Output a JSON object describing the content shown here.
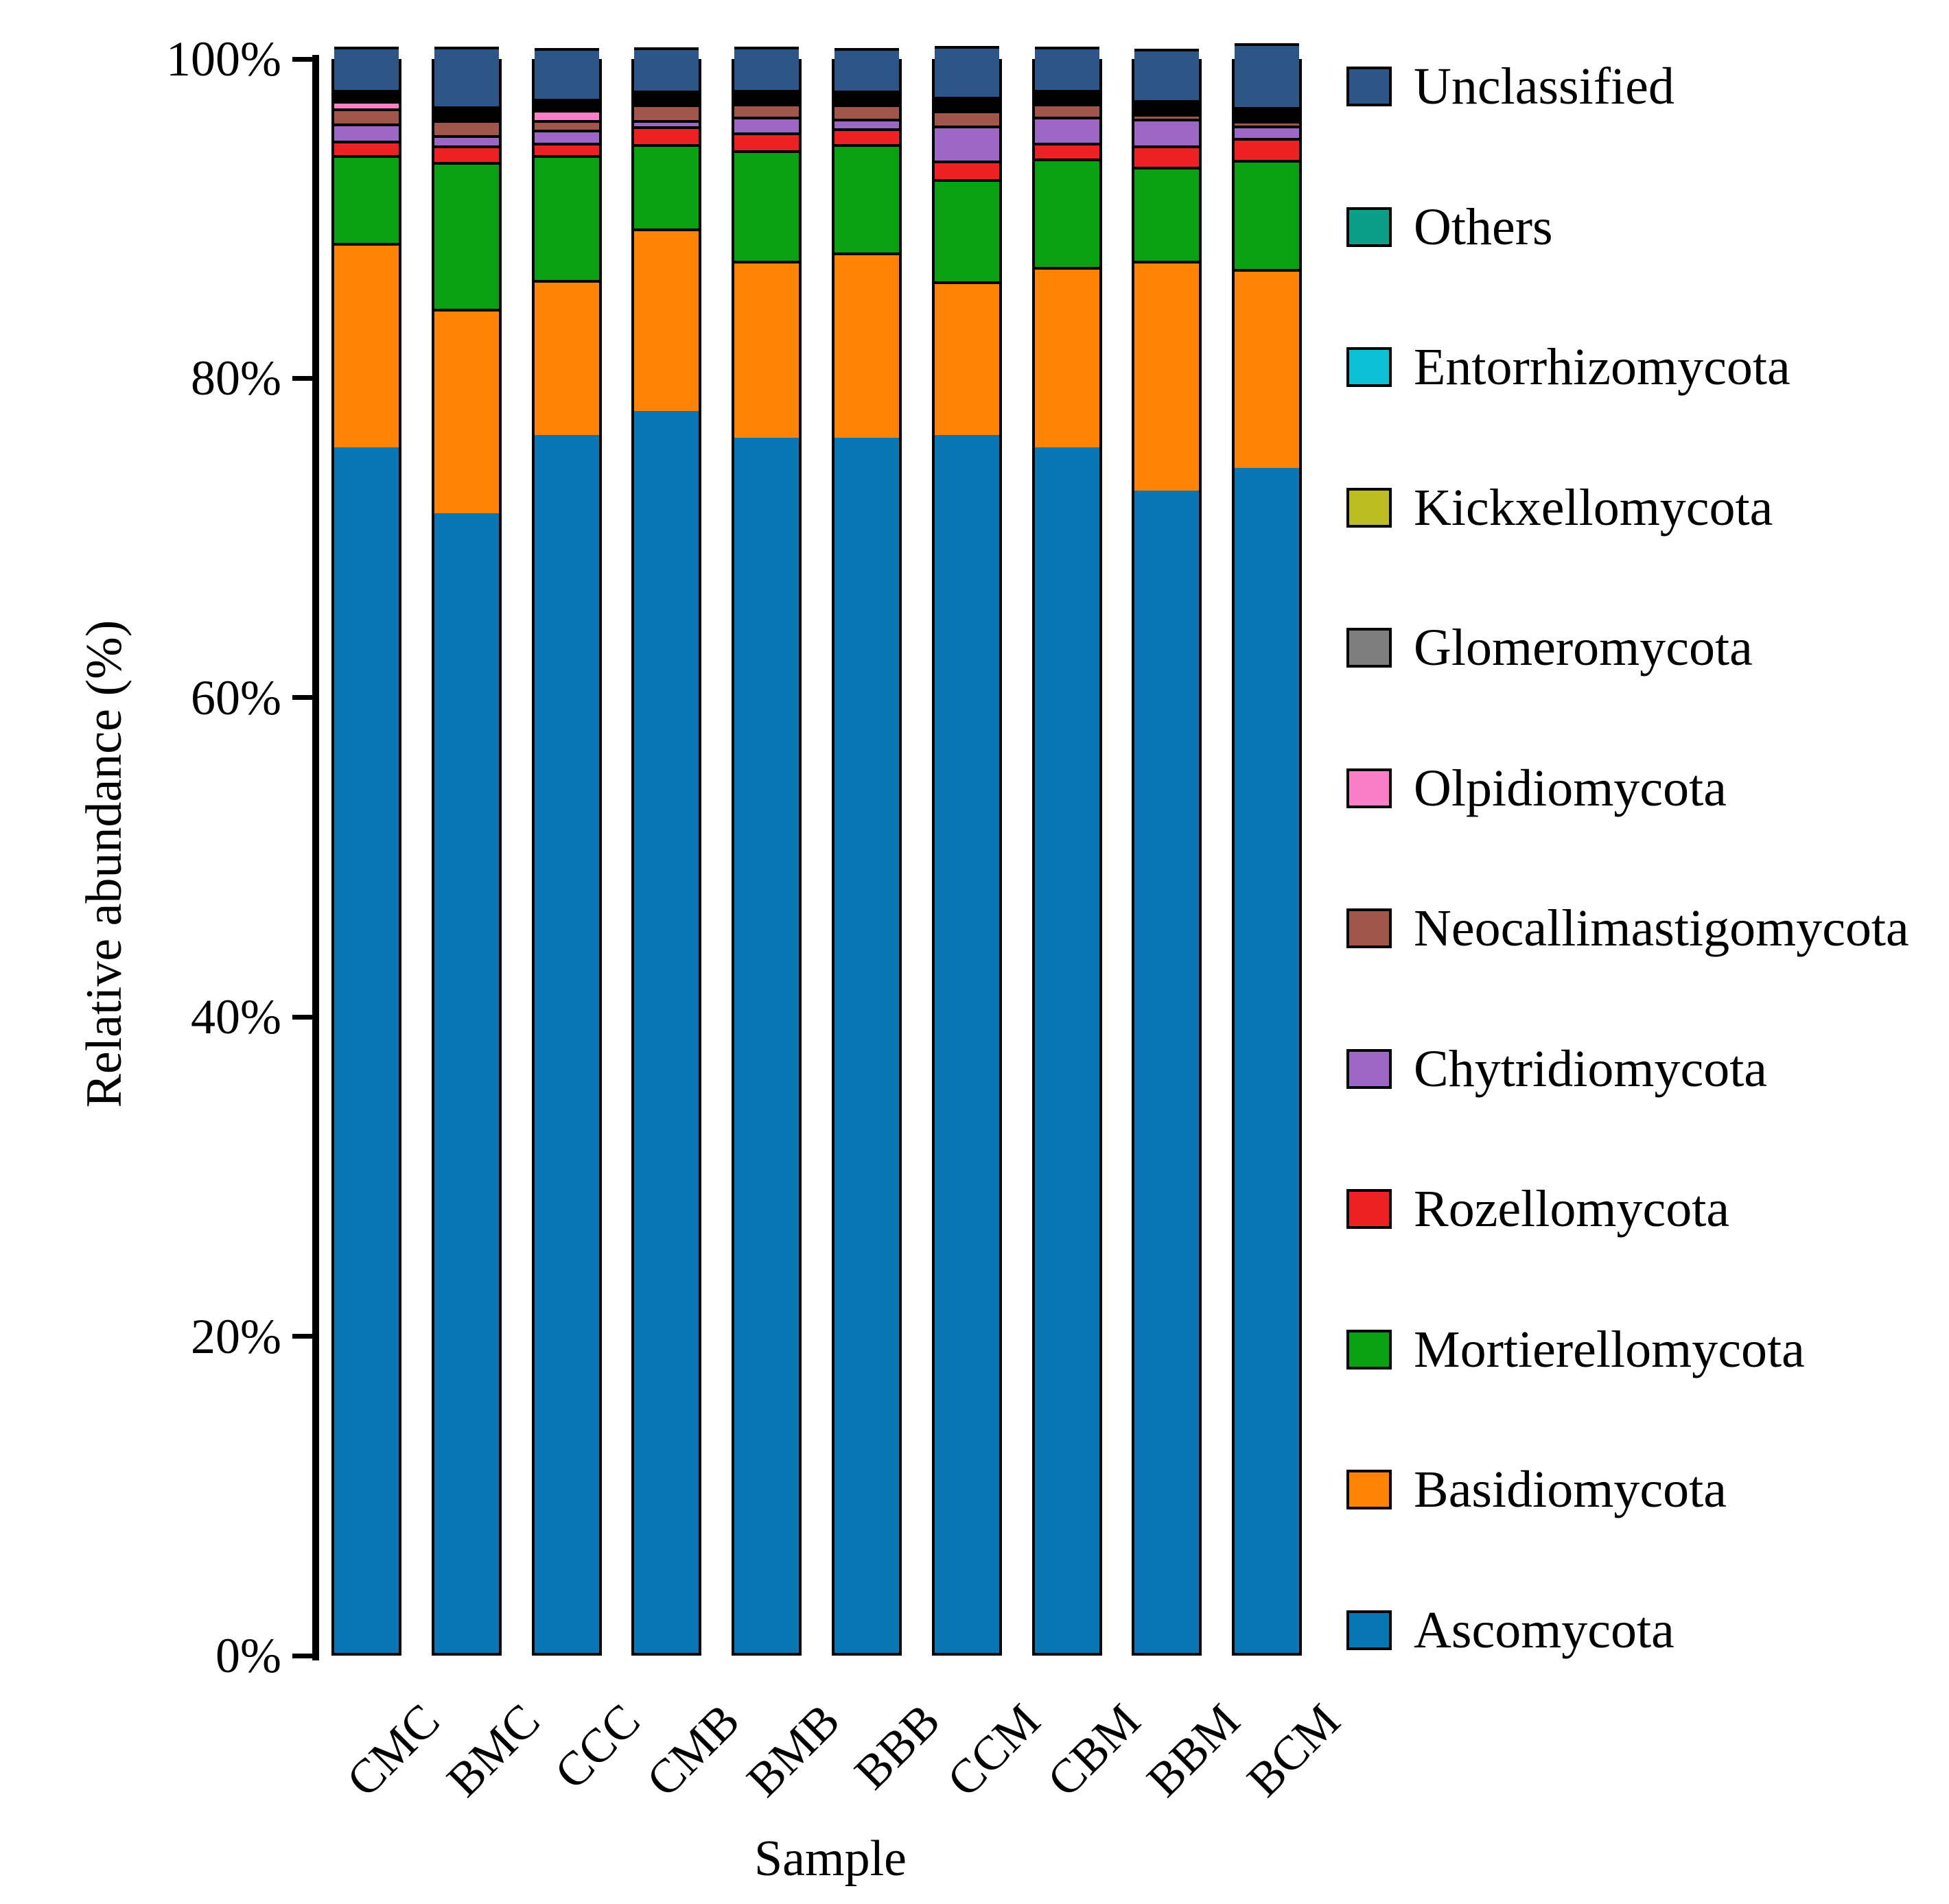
{
  "chart_data": {
    "type": "bar",
    "stacked": true,
    "xlabel": "Sample",
    "ylabel": "Relative abundance (%)",
    "ylim": [
      0,
      100
    ],
    "grid": false,
    "legend_position": "right",
    "y_ticks": [
      {
        "value": 100,
        "label": "100%"
      },
      {
        "value": 80,
        "label": "80%"
      },
      {
        "value": 60,
        "label": "60%"
      },
      {
        "value": 40,
        "label": "40%"
      },
      {
        "value": 20,
        "label": "20%"
      },
      {
        "value": 0,
        "label": "0%"
      }
    ],
    "categories": [
      "CMC",
      "BMC",
      "CCC",
      "CMB",
      "BMB",
      "BBB",
      "CCM",
      "CBM",
      "BBM",
      "BCM"
    ],
    "series": [
      {
        "name": "Ascomycota",
        "color": "#0b76b4",
        "values": [
          75.5,
          71.4,
          76.3,
          77.8,
          76.1,
          76.1,
          76.3,
          75.5,
          72.8,
          74.2
        ]
      },
      {
        "name": "Basidiomycota",
        "color": "#fe8306",
        "values": [
          12.8,
          12.8,
          9.7,
          11.4,
          11.1,
          11.6,
          9.6,
          11.3,
          14.4,
          12.5
        ]
      },
      {
        "name": "Mortierellomycota",
        "color": "#09a013",
        "values": [
          5.5,
          9.2,
          7.8,
          5.3,
          6.9,
          6.8,
          6.4,
          6.8,
          5.9,
          6.8
        ]
      },
      {
        "name": "Rozellomycota",
        "color": "#ee2224",
        "values": [
          0.9,
          1.0,
          0.8,
          1.1,
          1.15,
          1.0,
          1.15,
          1.0,
          1.3,
          1.4
        ]
      },
      {
        "name": "Chytridiomycota",
        "color": "#9d68c5",
        "values": [
          1.1,
          0.65,
          0.8,
          0.4,
          0.95,
          0.6,
          2.2,
          1.6,
          1.7,
          0.75
        ]
      },
      {
        "name": "Neocallimastigomycota",
        "color": "#a0564b",
        "values": [
          0.95,
          0.95,
          0.6,
          1.0,
          0.85,
          0.9,
          0.95,
          0.85,
          0.3,
          0.3
        ]
      },
      {
        "name": "Olpidiomycota",
        "color": "#f97fc6",
        "values": [
          0.45,
          0.05,
          0.65,
          0.04,
          0.05,
          0.05,
          0.06,
          0.06,
          0.08,
          0.02
        ]
      },
      {
        "name": "Glomeromycota",
        "color": "#7f7f7f",
        "values": [
          0.03,
          0.05,
          0.04,
          0.15,
          0.05,
          0.05,
          0.05,
          0.06,
          0.08,
          0.01
        ]
      },
      {
        "name": "Kickxellomycota",
        "color": "#bcbd22",
        "values": [
          0.03,
          0.05,
          0.04,
          0.03,
          0.05,
          0.05,
          0.04,
          0.05,
          0.08,
          0.01
        ]
      },
      {
        "name": "Entorrhizomycota",
        "color": "#0ec0d6",
        "values": [
          0.02,
          0.04,
          0.03,
          0.03,
          0.04,
          0.05,
          0.02,
          0.03,
          0.06,
          0.005
        ]
      },
      {
        "name": "Others",
        "color": "#0d9e88",
        "values": [
          0.02,
          0.06,
          0.04,
          0.05,
          0.06,
          0.15,
          0.03,
          0.05,
          0.1,
          0.005
        ]
      },
      {
        "name": "Unclassified",
        "color": "#2d5586",
        "values": [
          2.7,
          3.75,
          3.2,
          2.7,
          2.7,
          2.65,
          3.2,
          2.7,
          3.2,
          4.0
        ]
      }
    ],
    "legend_top_to_bottom": [
      "Unclassified",
      "Others",
      "Entorrhizomycota",
      "Kickxellomycota",
      "Glomeromycota",
      "Olpidiomycota",
      "Neocallimastigomycota",
      "Chytridiomycota",
      "Rozellomycota",
      "Mortierellomycota",
      "Basidiomycota",
      "Ascomycota"
    ]
  }
}
